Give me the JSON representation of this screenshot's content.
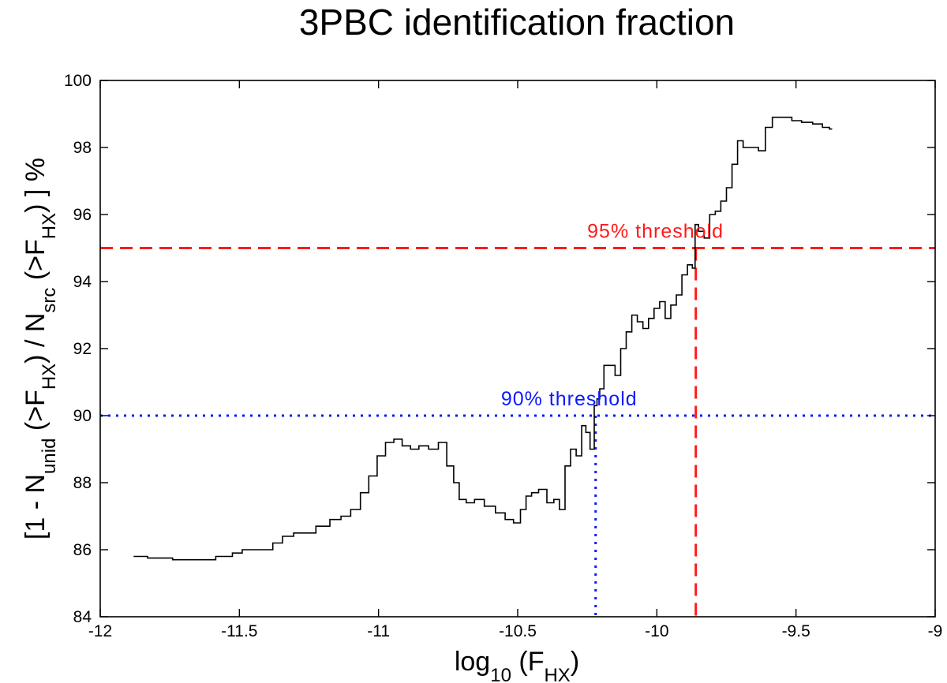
{
  "chart_data": {
    "type": "line",
    "title": "3PBC identification fraction",
    "xlabel": {
      "main": "log",
      "sub": "10",
      "open": " (F",
      "var_sub": "HX",
      "close": ")"
    },
    "ylabel": {
      "p1": "[1 - N",
      "s1": "unid",
      "p2": " (>F",
      "s2": "HX",
      "p3": ") / N",
      "s3": "src",
      "p4": " (>F",
      "s4": "HX",
      "p5": ") ] %"
    },
    "xlim": [
      -12,
      -9
    ],
    "ylim": [
      84,
      100
    ],
    "x_ticks": [
      -12,
      -11.5,
      -11,
      -10.5,
      -10,
      -9.5,
      -9
    ],
    "x_tick_labels": [
      "-12",
      "-11.5",
      "-11",
      "-10.5",
      "-10",
      "-9.5",
      "-9"
    ],
    "y_ticks": [
      84,
      86,
      88,
      90,
      92,
      94,
      96,
      98,
      100
    ],
    "y_tick_labels": [
      "84",
      "86",
      "88",
      "90",
      "92",
      "94",
      "96",
      "98",
      "100"
    ],
    "grid": false,
    "series": [
      {
        "color": "#000000",
        "x": [
          -11.88,
          -11.78,
          -11.7,
          -11.62,
          -11.55,
          -11.5,
          -11.48,
          -11.43,
          -11.4,
          -11.36,
          -11.33,
          -11.28,
          -11.25,
          -11.2,
          -11.15,
          -11.12,
          -11.08,
          -11.05,
          -11.02,
          -10.99,
          -10.96,
          -10.93,
          -10.9,
          -10.87,
          -10.84,
          -10.8,
          -10.77,
          -10.74,
          -10.72,
          -10.7,
          -10.67,
          -10.64,
          -10.6,
          -10.56,
          -10.53,
          -10.5,
          -10.48,
          -10.46,
          -10.44,
          -10.41,
          -10.38,
          -10.36,
          -10.34,
          -10.32,
          -10.3,
          -10.28,
          -10.26,
          -10.25,
          -10.23,
          -10.22,
          -10.21,
          -10.2,
          -10.18,
          -10.16,
          -10.14,
          -10.12,
          -10.1,
          -10.08,
          -10.06,
          -10.04,
          -10.02,
          -10.0,
          -9.98,
          -9.96,
          -9.94,
          -9.92,
          -9.9,
          -9.88,
          -9.865,
          -9.86,
          -9.84,
          -9.82,
          -9.8,
          -9.78,
          -9.76,
          -9.74,
          -9.72,
          -9.7,
          -9.68,
          -9.65,
          -9.62,
          -9.6,
          -9.57,
          -9.53,
          -9.5,
          -9.46,
          -9.42,
          -9.39,
          -9.37
        ],
        "y": [
          85.8,
          85.75,
          85.7,
          85.7,
          85.8,
          85.9,
          86.0,
          86.0,
          86.0,
          86.2,
          86.4,
          86.5,
          86.5,
          86.7,
          86.9,
          87.0,
          87.2,
          87.7,
          88.2,
          88.8,
          89.2,
          89.3,
          89.1,
          89.0,
          89.1,
          89.0,
          89.2,
          88.5,
          88.0,
          87.5,
          87.4,
          87.5,
          87.3,
          87.1,
          86.9,
          86.8,
          87.2,
          87.6,
          87.7,
          87.8,
          87.4,
          87.5,
          87.2,
          88.5,
          89.0,
          88.8,
          89.7,
          89.5,
          89.0,
          90.3,
          90.5,
          90.8,
          91.5,
          91.5,
          91.2,
          92.0,
          92.5,
          93.0,
          92.8,
          92.6,
          92.9,
          93.2,
          93.4,
          92.9,
          93.3,
          93.6,
          94.2,
          94.5,
          94.4,
          95.7,
          95.5,
          95.3,
          96.0,
          96.1,
          96.4,
          96.8,
          97.5,
          98.2,
          98.0,
          98.0,
          97.9,
          98.6,
          98.9,
          98.9,
          98.8,
          98.75,
          98.7,
          98.6,
          98.55
        ]
      }
    ],
    "thresholds": [
      {
        "label": "95% threshold",
        "y": 95,
        "x_cross": -9.86,
        "color": "#ff1a1a",
        "style": "dashed",
        "label_x": -10.25
      },
      {
        "label": "90% threshold",
        "y": 90,
        "x_cross": -10.22,
        "color": "#0a1aff",
        "style": "dotted",
        "label_x": -10.56
      }
    ]
  }
}
